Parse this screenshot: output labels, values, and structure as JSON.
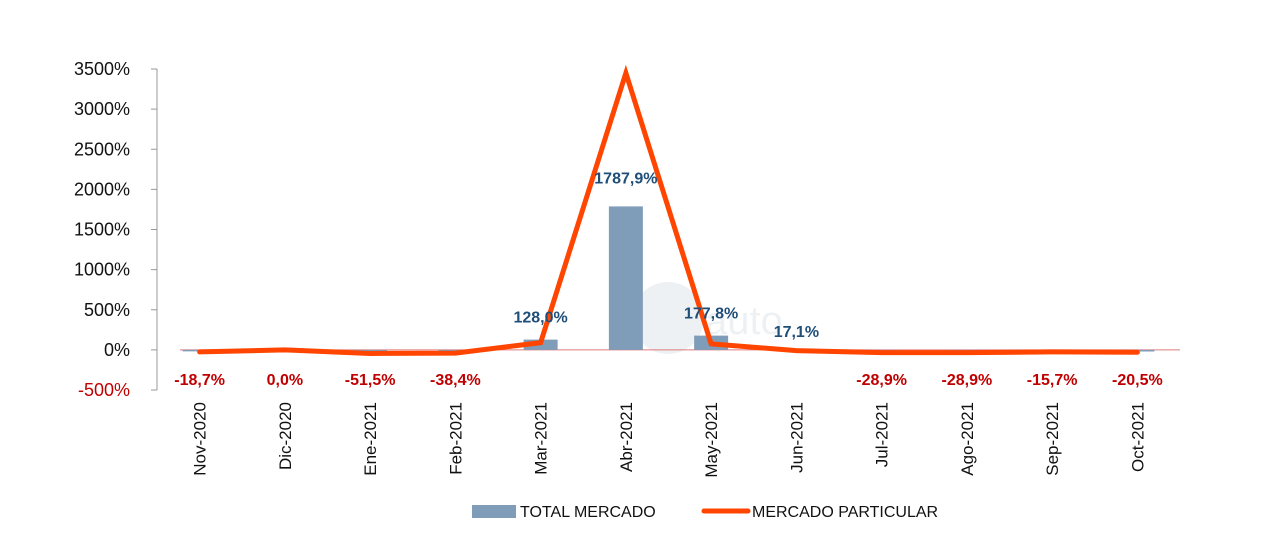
{
  "chart_data": {
    "type": "bar+line",
    "categories": [
      "Nov-2020",
      "Dic-2020",
      "Ene-2021",
      "Feb-2021",
      "Mar-2021",
      "Abr-2021",
      "May-2021",
      "Jun-2021",
      "Jul-2021",
      "Ago-2021",
      "Sep-2021",
      "Oct-2021"
    ],
    "series": [
      {
        "name": "TOTAL MERCADO",
        "type": "bar",
        "values": [
          -18.7,
          0.0,
          -51.5,
          -38.4,
          128.0,
          1787.9,
          177.8,
          17.1,
          -28.9,
          -28.9,
          -15.7,
          -20.5
        ]
      },
      {
        "name": "MERCADO PARTICULAR",
        "type": "line",
        "values": [
          -25,
          0,
          -45,
          -40,
          90,
          3450,
          75,
          -10,
          -35,
          -35,
          -25,
          -30
        ]
      }
    ],
    "data_labels": [
      "-18,7%",
      "0,0%",
      "-51,5%",
      "-38,4%",
      "128,0%",
      "1787,9%",
      "177,8%",
      "17,1%",
      "-28,9%",
      "-28,9%",
      "-15,7%",
      "-20,5%"
    ],
    "y_ticks": [
      "3500%",
      "3000%",
      "2500%",
      "2000%",
      "1500%",
      "1000%",
      "500%",
      "0%",
      "-500%"
    ],
    "ylim": [
      -500,
      3500
    ],
    "title": "",
    "xlabel": "",
    "ylabel": "",
    "grid": false,
    "legend_position": "bottom",
    "watermark": "auto"
  },
  "colors": {
    "bar": "#7f9db9",
    "line": "#ff4500",
    "label_positive": "#1f4e79",
    "label_negative": "#c00000",
    "tick_positive": "#111111",
    "tick_negative": "#c00000"
  }
}
